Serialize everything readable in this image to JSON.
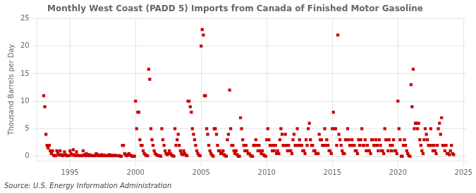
{
  "chart_data": {
    "type": "scatter",
    "title": "Monthly West Coast (PADD 5) Imports from Canada of Finished Motor Gasoline",
    "y_label": "Thousand Barrels per Day",
    "annotations": [
      "Source: U.S. Energy Information Administration"
    ],
    "color": "#cc0000",
    "marker": "square",
    "grid": true,
    "xlim": [
      1992.5,
      2025.2
    ],
    "ylim": [
      -0.8,
      25
    ],
    "xticks": [
      1995,
      2000,
      2005,
      2010,
      2015,
      2020,
      2025
    ],
    "yticks": [
      0,
      5,
      10,
      15,
      20,
      25
    ],
    "x": [
      1993.0,
      1993.08,
      1993.17,
      1993.25,
      1993.33,
      1993.42,
      1993.5,
      1993.58,
      1993.67,
      1993.75,
      1993.83,
      1993.92,
      1994.0,
      1994.08,
      1994.17,
      1994.25,
      1994.33,
      1994.42,
      1994.5,
      1994.58,
      1994.67,
      1994.75,
      1994.83,
      1994.92,
      1995.0,
      1995.08,
      1995.17,
      1995.25,
      1995.33,
      1995.42,
      1995.5,
      1995.58,
      1995.67,
      1995.75,
      1995.83,
      1995.92,
      1996.0,
      1996.08,
      1996.17,
      1996.25,
      1996.33,
      1996.42,
      1996.5,
      1996.58,
      1996.67,
      1996.75,
      1996.83,
      1996.92,
      1997.0,
      1997.08,
      1997.17,
      1997.25,
      1997.33,
      1997.42,
      1997.5,
      1997.58,
      1997.67,
      1997.75,
      1997.83,
      1997.92,
      1998.0,
      1998.08,
      1998.17,
      1998.25,
      1998.33,
      1998.42,
      1998.5,
      1998.67,
      1998.75,
      1998.83,
      1998.92,
      1999.0,
      1999.08,
      1999.17,
      1999.25,
      1999.33,
      1999.42,
      1999.5,
      1999.58,
      1999.67,
      1999.75,
      1999.83,
      1999.92,
      2000.0,
      2000.08,
      2000.17,
      2000.25,
      2000.33,
      2000.42,
      2000.5,
      2000.58,
      2000.67,
      2000.75,
      2000.83,
      2000.92,
      2001.0,
      2001.08,
      2001.17,
      2001.25,
      2001.33,
      2001.42,
      2001.5,
      2001.58,
      2001.67,
      2001.75,
      2001.83,
      2001.92,
      2002.0,
      2002.08,
      2002.17,
      2002.25,
      2002.33,
      2002.42,
      2002.5,
      2002.58,
      2002.67,
      2002.75,
      2002.83,
      2002.92,
      2003.0,
      2003.08,
      2003.17,
      2003.25,
      2003.33,
      2003.42,
      2003.5,
      2003.58,
      2003.67,
      2003.75,
      2003.83,
      2003.92,
      2004.0,
      2004.08,
      2004.17,
      2004.25,
      2004.33,
      2004.42,
      2004.5,
      2004.58,
      2004.67,
      2004.75,
      2004.83,
      2004.92,
      2005.0,
      2005.08,
      2005.17,
      2005.25,
      2005.33,
      2005.42,
      2005.5,
      2005.58,
      2005.67,
      2005.75,
      2005.83,
      2005.92,
      2006.0,
      2006.08,
      2006.17,
      2006.25,
      2006.33,
      2006.42,
      2006.5,
      2006.58,
      2006.67,
      2006.75,
      2006.83,
      2006.92,
      2007.0,
      2007.08,
      2007.17,
      2007.25,
      2007.33,
      2007.42,
      2007.5,
      2007.58,
      2007.67,
      2007.75,
      2007.83,
      2007.92,
      2008.0,
      2008.08,
      2008.17,
      2008.25,
      2008.33,
      2008.42,
      2008.5,
      2008.58,
      2008.67,
      2008.75,
      2008.83,
      2008.92,
      2009.0,
      2009.08,
      2009.17,
      2009.25,
      2009.33,
      2009.42,
      2009.5,
      2009.58,
      2009.67,
      2009.75,
      2009.83,
      2009.92,
      2010.0,
      2010.08,
      2010.17,
      2010.25,
      2010.33,
      2010.42,
      2010.5,
      2010.58,
      2010.67,
      2010.75,
      2010.83,
      2010.92,
      2011.0,
      2011.08,
      2011.17,
      2011.25,
      2011.33,
      2011.42,
      2011.5,
      2011.58,
      2011.67,
      2011.75,
      2011.83,
      2011.92,
      2012.0,
      2012.08,
      2012.17,
      2012.25,
      2012.33,
      2012.42,
      2012.5,
      2012.58,
      2012.67,
      2012.75,
      2012.83,
      2012.92,
      2013.0,
      2013.08,
      2013.17,
      2013.25,
      2013.33,
      2013.42,
      2013.5,
      2013.58,
      2013.67,
      2013.75,
      2013.83,
      2013.92,
      2014.0,
      2014.08,
      2014.17,
      2014.25,
      2014.33,
      2014.42,
      2014.5,
      2014.58,
      2014.67,
      2014.75,
      2014.83,
      2014.92,
      2015.0,
      2015.08,
      2015.17,
      2015.25,
      2015.33,
      2015.42,
      2015.5,
      2015.58,
      2015.67,
      2015.75,
      2015.83,
      2015.92,
      2016.0,
      2016.08,
      2016.17,
      2016.25,
      2016.33,
      2016.42,
      2016.5,
      2016.58,
      2016.67,
      2016.75,
      2016.83,
      2016.92,
      2017.0,
      2017.08,
      2017.17,
      2017.25,
      2017.33,
      2017.42,
      2017.5,
      2017.58,
      2017.67,
      2017.75,
      2017.83,
      2017.92,
      2018.0,
      2018.08,
      2018.17,
      2018.25,
      2018.33,
      2018.42,
      2018.5,
      2018.58,
      2018.67,
      2018.75,
      2018.83,
      2018.92,
      2019.0,
      2019.08,
      2019.17,
      2019.25,
      2019.33,
      2019.42,
      2019.5,
      2019.58,
      2019.67,
      2019.75,
      2019.83,
      2019.92,
      2020.0,
      2020.08,
      2020.17,
      2020.25,
      2020.33,
      2020.42,
      2020.5,
      2020.58,
      2020.67,
      2020.75,
      2020.83,
      2020.92,
      2021.0,
      2021.08,
      2021.17,
      2021.25,
      2021.33,
      2021.42,
      2021.5,
      2021.58,
      2021.67,
      2021.75,
      2021.83,
      2021.92,
      2022.0,
      2022.08,
      2022.17,
      2022.25,
      2022.33,
      2022.42,
      2022.5,
      2022.58,
      2022.67,
      2022.75,
      2022.83,
      2022.92,
      2023.0,
      2023.08,
      2023.17,
      2023.25,
      2023.33,
      2023.42,
      2023.5,
      2023.58,
      2023.67,
      2023.75,
      2023.83,
      2023.92,
      2024.0,
      2024.08,
      2024.17,
      2024.25
    ],
    "values": [
      11.0,
      9.0,
      4.0,
      2.0,
      1.5,
      2.0,
      1.0,
      0.5,
      1.0,
      0.2,
      0.1,
      0.1,
      1.0,
      0.5,
      0.2,
      1.0,
      0.3,
      0.1,
      0.2,
      0.8,
      0.3,
      0.1,
      0.1,
      0.1,
      1.0,
      0.5,
      0.2,
      1.2,
      0.3,
      0.1,
      0.8,
      0.2,
      0.1,
      0.1,
      0.1,
      0.1,
      1.0,
      0.3,
      0.1,
      0.5,
      0.2,
      0.1,
      0.3,
      0.1,
      0.1,
      0.1,
      0.1,
      0.1,
      0.5,
      0.3,
      0.1,
      0.2,
      0.1,
      0.3,
      0.1,
      0.1,
      0.2,
      0.1,
      0.1,
      0.1,
      0.3,
      0.1,
      0.2,
      0.1,
      0.1,
      0.2,
      0.1,
      0.1,
      0.1,
      0.0,
      0.0,
      2.0,
      2.0,
      0.5,
      0.2,
      0.1,
      0.3,
      0.5,
      0.2,
      0.1,
      0.0,
      0.0,
      0.0,
      10.0,
      5.0,
      8.0,
      8.0,
      3.0,
      2.0,
      2.0,
      1.0,
      0.5,
      0.3,
      0.1,
      0.1,
      15.8,
      14.0,
      5.0,
      3.0,
      2.0,
      1.0,
      0.5,
      0.3,
      0.2,
      0.1,
      0.1,
      0.0,
      5.0,
      3.0,
      2.0,
      1.0,
      0.5,
      0.3,
      0.5,
      1.0,
      0.5,
      0.2,
      0.1,
      0.0,
      5.0,
      2.0,
      3.0,
      4.0,
      2.0,
      1.0,
      0.5,
      0.3,
      1.0,
      0.5,
      0.2,
      0.1,
      10.0,
      10.0,
      9.0,
      8.0,
      5.0,
      4.0,
      3.0,
      2.0,
      1.0,
      0.5,
      0.2,
      0.1,
      20.0,
      23.0,
      22.0,
      11.0,
      11.0,
      5.0,
      4.0,
      2.0,
      1.0,
      0.5,
      0.2,
      0.0,
      5.0,
      5.0,
      4.0,
      2.0,
      1.0,
      1.0,
      0.5,
      0.5,
      1.0,
      0.3,
      0.1,
      0.0,
      3.0,
      4.0,
      12.0,
      5.0,
      2.0,
      2.0,
      1.0,
      0.5,
      1.0,
      0.3,
      0.0,
      0.0,
      7.0,
      5.0,
      3.0,
      2.0,
      1.0,
      2.0,
      1.0,
      0.5,
      0.5,
      0.2,
      0.0,
      0.0,
      2.0,
      2.0,
      3.0,
      2.0,
      1.0,
      2.0,
      1.0,
      0.5,
      1.0,
      0.3,
      0.1,
      0.0,
      3.0,
      5.0,
      3.0,
      2.0,
      2.0,
      1.0,
      2.0,
      1.0,
      2.0,
      0.5,
      1.0,
      0.5,
      3.0,
      5.0,
      4.0,
      2.0,
      2.0,
      4.0,
      2.0,
      1.0,
      2.0,
      1.0,
      1.0,
      0.5,
      3.0,
      4.0,
      2.0,
      2.0,
      5.0,
      2.0,
      3.0,
      2.0,
      2.0,
      1.0,
      1.0,
      0.5,
      3.0,
      2.0,
      5.0,
      6.0,
      3.0,
      2.0,
      2.0,
      1.0,
      1.0,
      0.5,
      0.5,
      0.5,
      4.0,
      3.0,
      3.0,
      2.0,
      2.0,
      5.0,
      2.0,
      3.0,
      2.0,
      1.0,
      1.0,
      0.5,
      5.0,
      8.0,
      5.0,
      5.0,
      2.0,
      22.0,
      4.0,
      3.0,
      2.0,
      1.0,
      0.5,
      0.5,
      3.0,
      3.0,
      5.0,
      3.0,
      2.0,
      2.0,
      3.0,
      2.0,
      2.0,
      1.0,
      1.0,
      0.5,
      3.0,
      2.0,
      3.0,
      5.0,
      2.0,
      2.0,
      3.0,
      1.0,
      2.0,
      1.0,
      1.0,
      0.5,
      3.0,
      3.0,
      2.0,
      2.0,
      3.0,
      2.0,
      1.0,
      3.0,
      2.0,
      1.0,
      1.0,
      0.5,
      5.0,
      3.0,
      3.0,
      1.0,
      3.0,
      2.0,
      1.0,
      2.0,
      3.0,
      1.0,
      1.0,
      0.5,
      10.0,
      5.0,
      3.0,
      0.0,
      0.0,
      2.0,
      3.0,
      2.0,
      1.0,
      0.5,
      0.1,
      0.0,
      13.0,
      9.0,
      15.8,
      5.0,
      6.0,
      6.0,
      5.0,
      6.0,
      3.0,
      2.0,
      1.0,
      0.5,
      3.0,
      5.0,
      4.0,
      3.0,
      2.0,
      2.0,
      5.0,
      2.0,
      1.0,
      2.0,
      1.0,
      0.5,
      2.0,
      5.0,
      6.0,
      4.0,
      7.0,
      2.0,
      2.0,
      1.0,
      2.0,
      0.5,
      0.5,
      0.3,
      1.0,
      2.0,
      0.5,
      0.3
    ]
  }
}
